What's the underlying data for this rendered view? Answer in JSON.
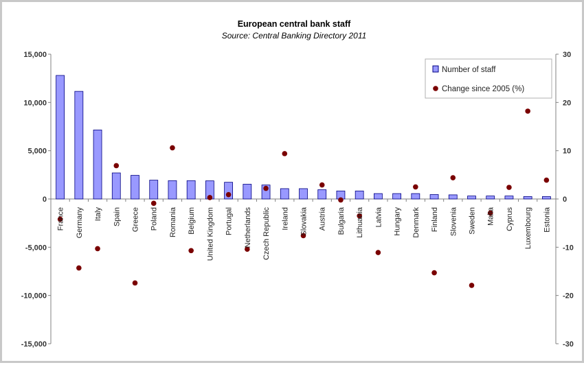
{
  "chart_data": {
    "type": "bar",
    "title": "European central bank staff",
    "subtitle": "Source: Central Banking Directory 2011",
    "categories": [
      "France",
      "Germany",
      "Italy",
      "Spain",
      "Greece",
      "Poland",
      "Romania",
      "Belgium",
      "United Kingdom",
      "Portugal",
      "Netherlands",
      "Czech Republic",
      "Ireland",
      "Slovakia",
      "Austria",
      "Bulgaria",
      "Lithuania",
      "Latvia",
      "Hungary",
      "Denmark",
      "Finland",
      "Slovenia",
      "Sweden",
      "Malta",
      "Cyprus",
      "Luxembourg",
      "Estonia"
    ],
    "series": [
      {
        "name": "Number of staff",
        "type": "bar",
        "axis": "left",
        "color": "#9999ff",
        "values": [
          12800,
          11150,
          7150,
          2700,
          2450,
          1950,
          1900,
          1900,
          1880,
          1730,
          1530,
          1450,
          1070,
          1070,
          960,
          830,
          830,
          560,
          560,
          560,
          460,
          430,
          310,
          310,
          310,
          250,
          250
        ]
      },
      {
        "name": "Change since 2005 (%)",
        "type": "scatter",
        "axis": "right",
        "color": "#7a0000",
        "values": [
          -4.2,
          -14.3,
          -10.3,
          6.9,
          -17.4,
          -0.9,
          10.6,
          -10.7,
          0.3,
          0.9,
          -10.4,
          2.2,
          9.4,
          -7.6,
          2.9,
          -0.2,
          -3.5,
          -11.1,
          null,
          2.5,
          -15.3,
          4.4,
          -17.9,
          -2.9,
          2.4,
          18.2,
          3.9
        ]
      }
    ],
    "y_left": {
      "ylim": [
        -15000,
        15000
      ],
      "ticks": [
        -15000,
        -10000,
        -5000,
        0,
        5000,
        10000,
        15000
      ],
      "tick_labels": [
        "-15,000",
        "-10,000",
        "-5,000",
        "0",
        "5,000",
        "10,000",
        "15,000"
      ]
    },
    "y_right": {
      "ylim": [
        -30,
        30
      ],
      "ticks": [
        -30,
        -20,
        -10,
        0,
        10,
        20,
        30
      ],
      "tick_labels": [
        "-30",
        "-20",
        "-10",
        "0",
        "10",
        "20",
        "30"
      ]
    },
    "xlabel": "",
    "ylabel": "",
    "grid": false,
    "legend_position": "top-right",
    "colors": {
      "bar": "#9999ff",
      "bar_border": "#000080",
      "marker": "#7a0000",
      "axis": "#808080"
    }
  }
}
